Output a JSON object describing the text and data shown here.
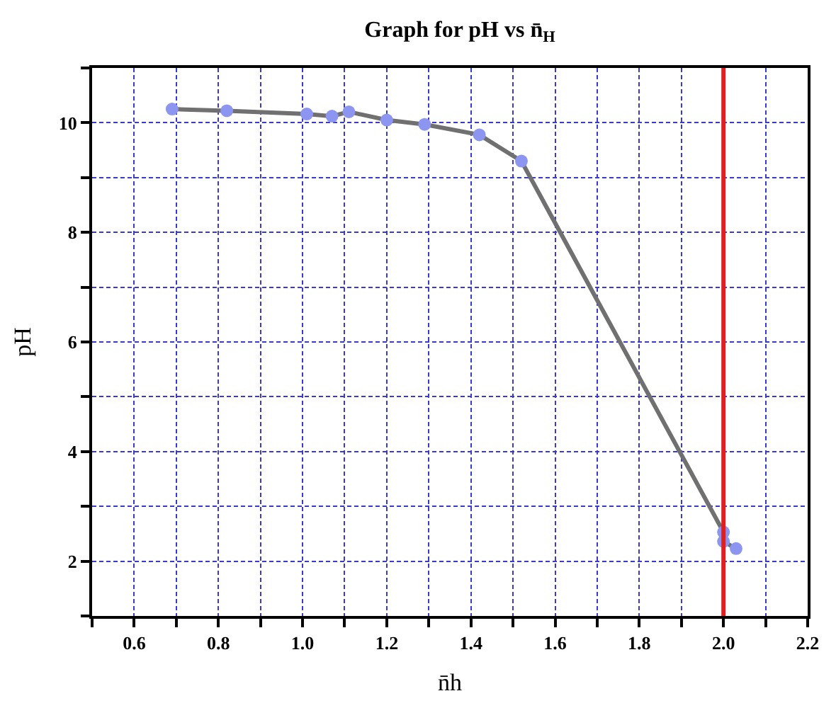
{
  "chart_data": {
    "type": "line",
    "title": "Graph for pH vs n̄$_{H}$",
    "xlabel": "n̄h",
    "ylabel": "pH",
    "x": [
      0.69,
      0.82,
      1.01,
      1.07,
      1.11,
      1.2,
      1.29,
      1.42,
      1.52,
      2.0,
      2.0,
      2.03
    ],
    "series": [
      {
        "color": "#8c96f0",
        "values": [
          10.25,
          10.22,
          10.16,
          10.12,
          10.2,
          10.05,
          9.97,
          9.78,
          9.3,
          2.53,
          2.36,
          2.23
        ]
      }
    ],
    "marker": "circle",
    "xlim": [
      0.5,
      2.2
    ],
    "ylim": [
      1,
      11
    ],
    "xticks": [
      {
        "value": 0.5,
        "label": null
      },
      0.6,
      {
        "value": 0.7,
        "label": null
      },
      0.8,
      {
        "value": 0.9,
        "label": null
      },
      {
        "value": 1.0,
        "label": "1.0"
      },
      {
        "value": 1.1,
        "label": null
      },
      1.2,
      {
        "value": 1.3,
        "label": null
      },
      1.4,
      {
        "value": 1.5,
        "label": null
      },
      1.6,
      {
        "value": 1.7,
        "label": null
      },
      1.8,
      {
        "value": 1.9,
        "label": null
      },
      {
        "value": 2.0,
        "label": "2.0"
      },
      {
        "value": 2.1,
        "label": null
      },
      {
        "value": 2.2,
        "label": "2.2"
      }
    ],
    "yticks": [
      {
        "value": 1,
        "label": null
      },
      2,
      {
        "value": 3,
        "label": null
      },
      4,
      {
        "value": 5,
        "label": null
      },
      6,
      {
        "value": 7,
        "label": null
      },
      8,
      {
        "value": 9,
        "label": null
      },
      10,
      {
        "value": 11,
        "label": null
      }
    ],
    "ref_lines": [
      {
        "axis": "x",
        "value": 2.0,
        "label": null,
        "color": "#e02020"
      }
    ],
    "grid": true,
    "legend": false
  }
}
